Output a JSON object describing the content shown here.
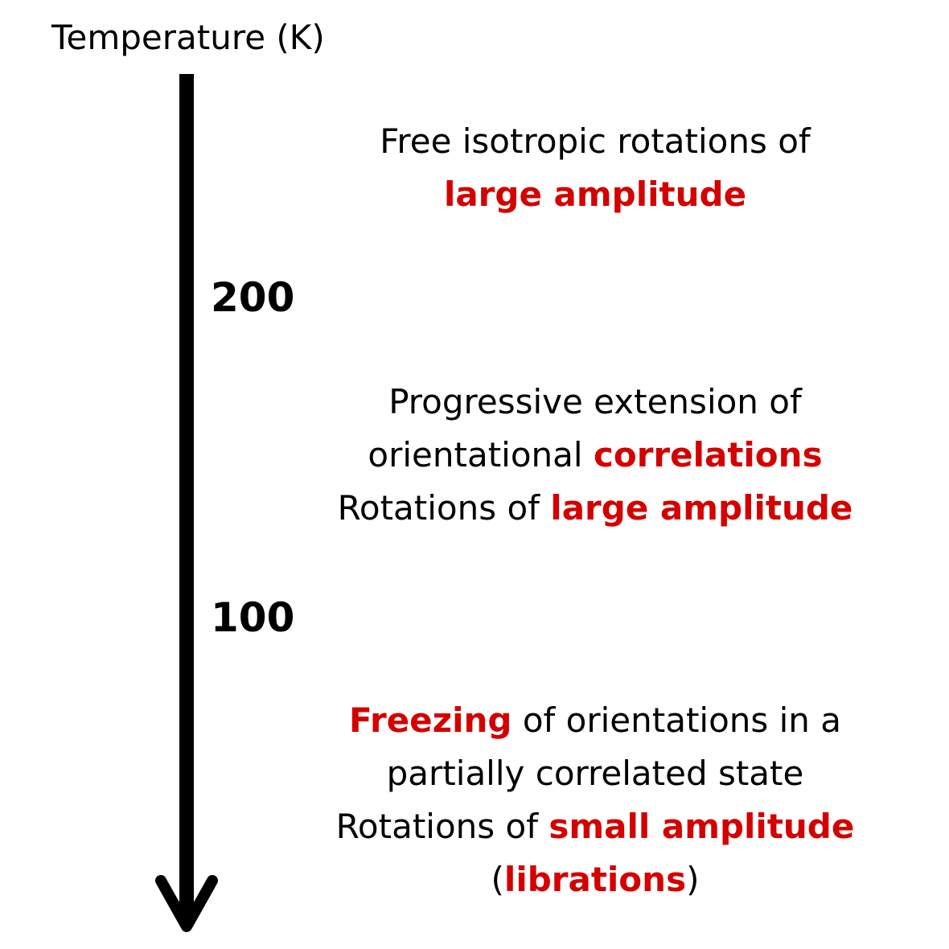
{
  "axis": {
    "title": "Temperature (K)"
  },
  "ticks": [
    {
      "label": "200"
    },
    {
      "label": "100"
    }
  ],
  "regions": [
    {
      "lines": [
        [
          {
            "text": "Free isotropic rotations of",
            "hl": false
          }
        ],
        [
          {
            "text": "large amplitude",
            "hl": true
          }
        ]
      ]
    },
    {
      "lines": [
        [
          {
            "text": "Progressive extension of",
            "hl": false
          }
        ],
        [
          {
            "text": "orientational ",
            "hl": false
          },
          {
            "text": "correlations",
            "hl": true
          }
        ],
        [
          {
            "text": "Rotations of ",
            "hl": false
          },
          {
            "text": "large amplitude",
            "hl": true
          }
        ]
      ]
    },
    {
      "lines": [
        [
          {
            "text": "Freezing",
            "hl": true
          },
          {
            "text": " of orientations in a",
            "hl": false
          }
        ],
        [
          {
            "text": "partially correlated state",
            "hl": false
          }
        ],
        [
          {
            "text": "Rotations of ",
            "hl": false
          },
          {
            "text": "small amplitude",
            "hl": true
          }
        ],
        [
          {
            "text": "(",
            "hl": false
          },
          {
            "text": "librations",
            "hl": true
          },
          {
            "text": ")",
            "hl": false
          }
        ]
      ]
    }
  ],
  "colors": {
    "highlight": "#d40000",
    "text": "#000000",
    "arrow": "#000000"
  }
}
